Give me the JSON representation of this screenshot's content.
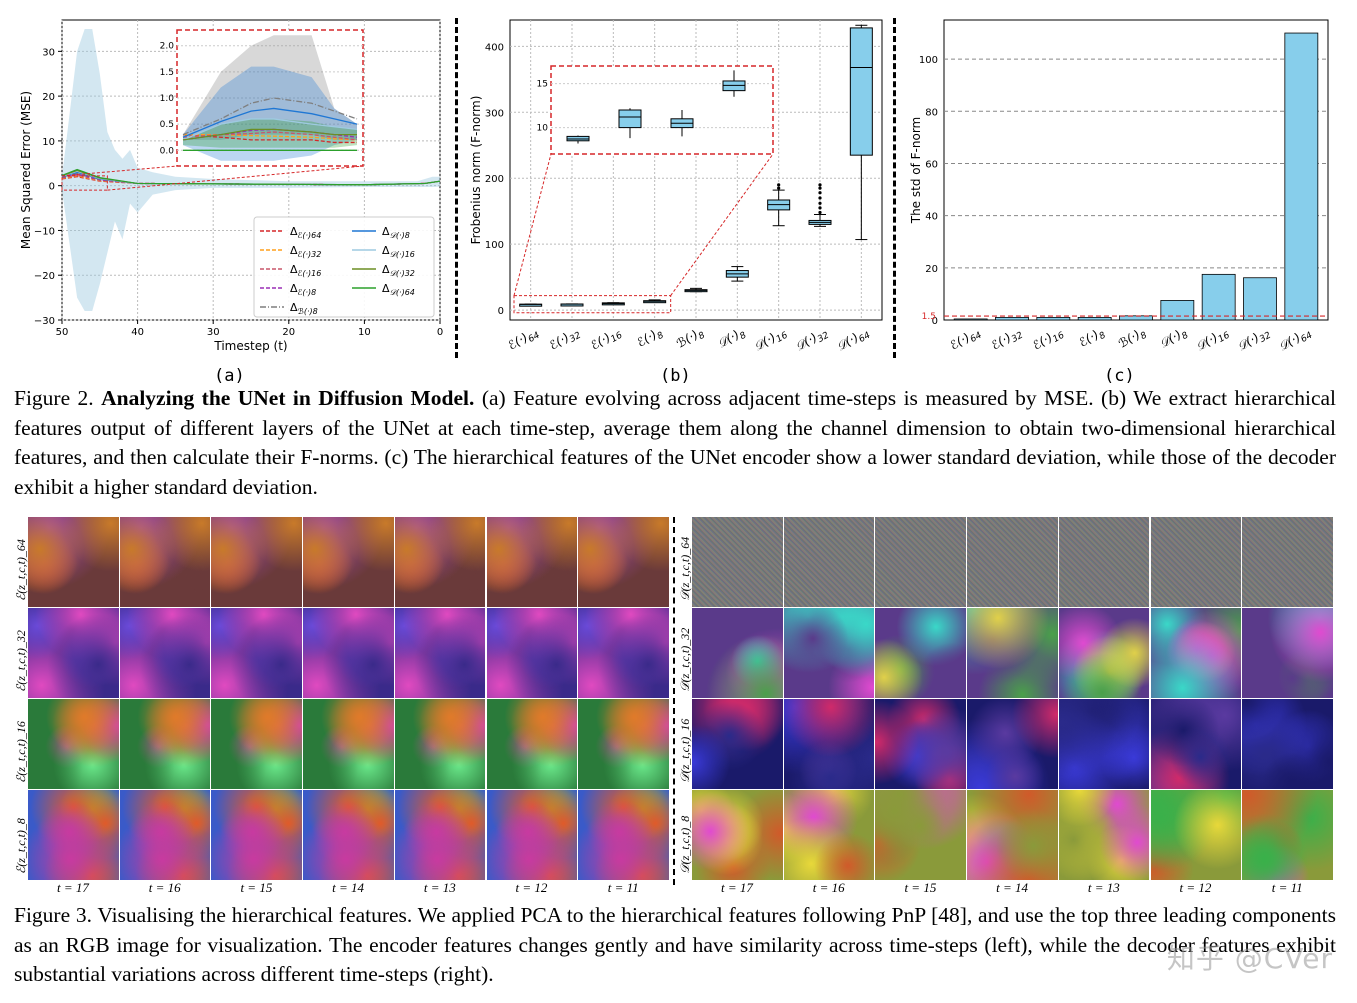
{
  "figure2": {
    "panels": [
      "(a)",
      "(b)",
      "(c)"
    ],
    "caption_label": "Figure 2.",
    "caption_title": "Analyzing the UNet in Diffusion Model.",
    "caption_text": " (a) Feature evolving across adjacent time-steps is measured by MSE. (b) We extract hierarchical features output of different layers of the UNet at each time-step, average them along the channel dimension to obtain two-dimensional hierarchical features, and then calculate their F-norms. (c) The hierarchical features of the UNet encoder show a lower standard deviation, while those of the decoder exhibit a higher standard deviation."
  },
  "figure3": {
    "caption_label": "Figure 3.",
    "caption_text": "Visualising the hierarchical features. We applied PCA to the hierarchical features following PnP [48], and use the top three leading components as an RGB image for visualization. The encoder features changes gently and have similarity across time-steps (left), while the decoder features exhibit substantial variations across different time-steps (right).",
    "enc_rows": [
      "ℰ(z_t,c,t)_64",
      "ℰ(z_t,c,t)_32",
      "ℰ(z_t,c,t)_16",
      "ℰ(z_t,c,t)_8"
    ],
    "dec_rows": [
      "𝒟(z_t,c,t)_64",
      "𝒟(z_t,c,t)_32",
      "𝒟(z_t,c,t)_16",
      "𝒟(z_t,c,t)_8"
    ],
    "timesteps": [
      "t = 17",
      "t = 16",
      "t = 15",
      "t = 14",
      "t = 13",
      "t = 12",
      "t = 11"
    ]
  },
  "watermark": "知乎 @CVer",
  "chart_data": [
    {
      "type": "line",
      "panel": "(a)",
      "xlabel": "Timestep (t)",
      "ylabel": "Mean Squared Error (MSE)",
      "xlim": [
        50,
        0
      ],
      "ylim": [
        -30,
        37
      ],
      "xticks": [
        50,
        40,
        30,
        20,
        10,
        0
      ],
      "yticks": [
        -30,
        -20,
        -10,
        0,
        10,
        20,
        30
      ],
      "legend_position": "lower-right",
      "series": [
        {
          "name": "Δ_ℰ(·)64",
          "color": "#d62728",
          "style": "dashed",
          "mean": [
            0.3,
            0.25,
            0.2,
            0.2,
            0.2,
            0.15,
            0.15
          ]
        },
        {
          "name": "Δ_ℰ(·)32",
          "color": "#ff9f1c",
          "style": "dashed",
          "mean": [
            0.3,
            0.3,
            0.28,
            0.27,
            0.25,
            0.22,
            0.2
          ]
        },
        {
          "name": "Δ_ℰ(·)16",
          "color": "#c9566a",
          "style": "dashed",
          "mean": [
            0.25,
            0.3,
            0.32,
            0.35,
            0.3,
            0.25,
            0.2
          ]
        },
        {
          "name": "Δ_ℰ(·)8",
          "color": "#9a2fb5",
          "style": "dashed",
          "mean": [
            0.2,
            0.3,
            0.38,
            0.4,
            0.35,
            0.3,
            0.25
          ]
        },
        {
          "name": "Δ_ℬ(·)8",
          "color": "#7f7f7f",
          "style": "dashdot",
          "mean": [
            0.3,
            0.6,
            0.9,
            1.0,
            0.9,
            0.75,
            0.6
          ]
        },
        {
          "name": "Δ_𝒟(·)8",
          "color": "#1f77d4",
          "style": "solid",
          "mean": [
            0.25,
            0.55,
            0.75,
            0.8,
            0.7,
            0.6,
            0.5
          ]
        },
        {
          "name": "Δ_𝒟(·)16",
          "color": "#9ecae1",
          "style": "solid",
          "mean": [
            0.2,
            0.5,
            0.6,
            0.6,
            0.5,
            0.45,
            0.4
          ]
        },
        {
          "name": "Δ_𝒟(·)32",
          "color": "#6b8e23",
          "style": "solid",
          "mean": [
            0.2,
            0.3,
            0.4,
            0.4,
            0.35,
            0.3,
            0.3
          ]
        },
        {
          "name": "Δ_𝒟(·)64",
          "color": "#2ca02c",
          "style": "solid",
          "mean": [
            0.0,
            0.0,
            0.0,
            0.0,
            0.0,
            0.0,
            0.0
          ]
        }
      ],
      "inset": {
        "x": [
          35,
          30,
          26,
          23,
          18,
          15,
          12
        ],
        "ylim": [
          -0.3,
          2.3
        ],
        "yticks": [
          0.0,
          0.5,
          1.0,
          1.5,
          2.0
        ]
      }
    },
    {
      "type": "box",
      "panel": "(b)",
      "ylabel": "Frobenius norm (F-norm)",
      "ylim": [
        -15,
        440
      ],
      "yticks": [
        0,
        100,
        200,
        300,
        400
      ],
      "categories": [
        "ℰ(·)64",
        "ℰ(·)32",
        "ℰ(·)16",
        "ℰ(·)8",
        "ℬ(·)8",
        "𝒟(·)8",
        "𝒟(·)16",
        "𝒟(·)32",
        "𝒟(·)64"
      ],
      "boxes": [
        {
          "min": 8.2,
          "q1": 8.5,
          "median": 8.7,
          "q3": 9.0,
          "max": 9.1
        },
        {
          "min": 8.7,
          "q1": 8.9,
          "median": 9.1,
          "q3": 9.3,
          "max": 9.4
        },
        {
          "min": 8.8,
          "q1": 9.2,
          "median": 9.8,
          "q3": 11.0,
          "max": 11.2
        },
        {
          "min": 11.8,
          "q1": 12.8,
          "median": 13.4,
          "q3": 14.3,
          "max": 15.5
        },
        {
          "min": 28,
          "q1": 29,
          "median": 30,
          "q3": 31,
          "max": 33
        },
        {
          "min": 44,
          "q1": 50,
          "median": 55,
          "q3": 60,
          "max": 66
        },
        {
          "min": 128,
          "q1": 152,
          "median": 160,
          "q3": 167,
          "max": 182
        },
        {
          "min": 127,
          "q1": 130,
          "median": 133,
          "q3": 136,
          "max": 145
        },
        {
          "min": 107,
          "q1": 235,
          "median": 368,
          "q3": 428,
          "max": 432
        }
      ],
      "inset": {
        "ylim": [
          7,
          17
        ],
        "yticks": [
          10,
          15
        ]
      }
    },
    {
      "type": "bar",
      "panel": "(c)",
      "ylabel": "The std of F-norm",
      "ylim": [
        0,
        115
      ],
      "yticks": [
        0,
        20,
        40,
        60,
        80,
        100
      ],
      "reference_line": {
        "value": 1.5,
        "label": "1.5",
        "color": "#d62728"
      },
      "categories": [
        "ℰ(·)64",
        "ℰ(·)32",
        "ℰ(·)16",
        "ℰ(·)8",
        "ℬ(·)8",
        "𝒟(·)8",
        "𝒟(·)16",
        "𝒟(·)32",
        "𝒟(·)64"
      ],
      "values": [
        0.4,
        1.0,
        1.0,
        1.0,
        1.6,
        7.5,
        17.5,
        16.2,
        110
      ],
      "color": "#87ceeb"
    }
  ]
}
